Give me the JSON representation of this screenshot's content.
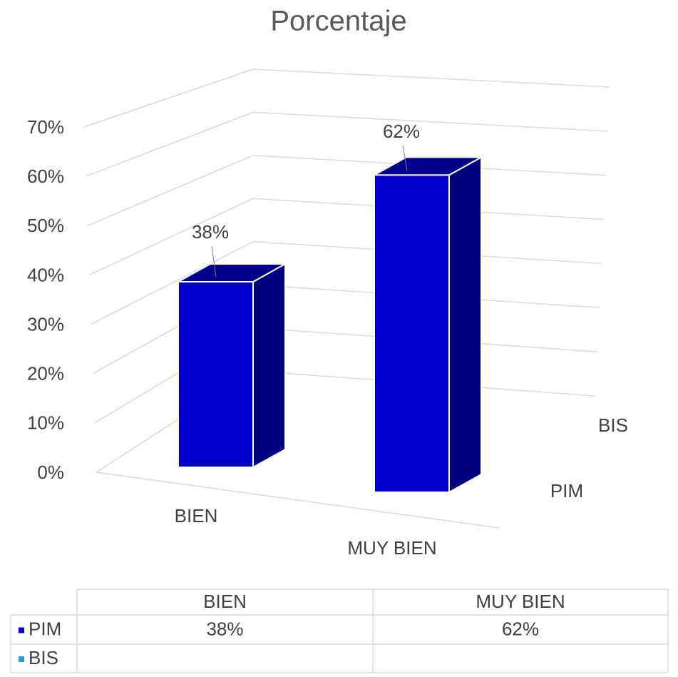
{
  "chart_data": {
    "type": "bar3d",
    "title": "Porcentaje",
    "categories": [
      "BIEN",
      "MUY BIEN"
    ],
    "series": [
      {
        "name": "PIM",
        "color": "#0000cc",
        "values": [
          38,
          62
        ],
        "value_labels": [
          "38%",
          "62%"
        ]
      },
      {
        "name": "BIS",
        "color": "#1fa3d6",
        "values": [
          null,
          null
        ]
      }
    ],
    "ylim": [
      0,
      70
    ],
    "yticks": [
      {
        "value": 0,
        "label": "0%"
      },
      {
        "value": 10,
        "label": "10%"
      },
      {
        "value": 20,
        "label": "20%"
      },
      {
        "value": 30,
        "label": "30%"
      },
      {
        "value": 40,
        "label": "40%"
      },
      {
        "value": 50,
        "label": "50%"
      },
      {
        "value": 60,
        "label": "60%"
      },
      {
        "value": 70,
        "label": "70%"
      }
    ],
    "grid": true,
    "data_table": true
  }
}
